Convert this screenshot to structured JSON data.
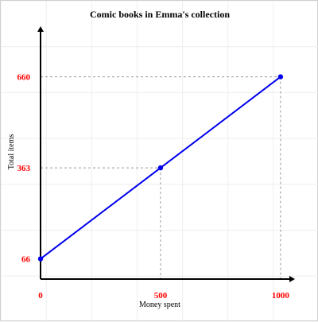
{
  "chart_data": {
    "type": "line",
    "title": "Comic books in Emma's collection",
    "xlabel": "Money spent",
    "ylabel": "Total items",
    "x": [
      0,
      500,
      1000
    ],
    "series": [
      {
        "values": [
          66,
          363,
          660
        ]
      }
    ],
    "x_ticks": [
      0,
      500,
      1000
    ],
    "y_ticks": [
      66,
      363,
      660
    ],
    "xlim": [
      0,
      1060
    ],
    "ylim": [
      0,
      825
    ],
    "grid": true,
    "colors": {
      "line": "#0000ee",
      "point": "#0000ee",
      "tick_label": "#ff0000",
      "guide": "#999999",
      "grid": "#eeeeee",
      "axis": "#000000"
    }
  }
}
